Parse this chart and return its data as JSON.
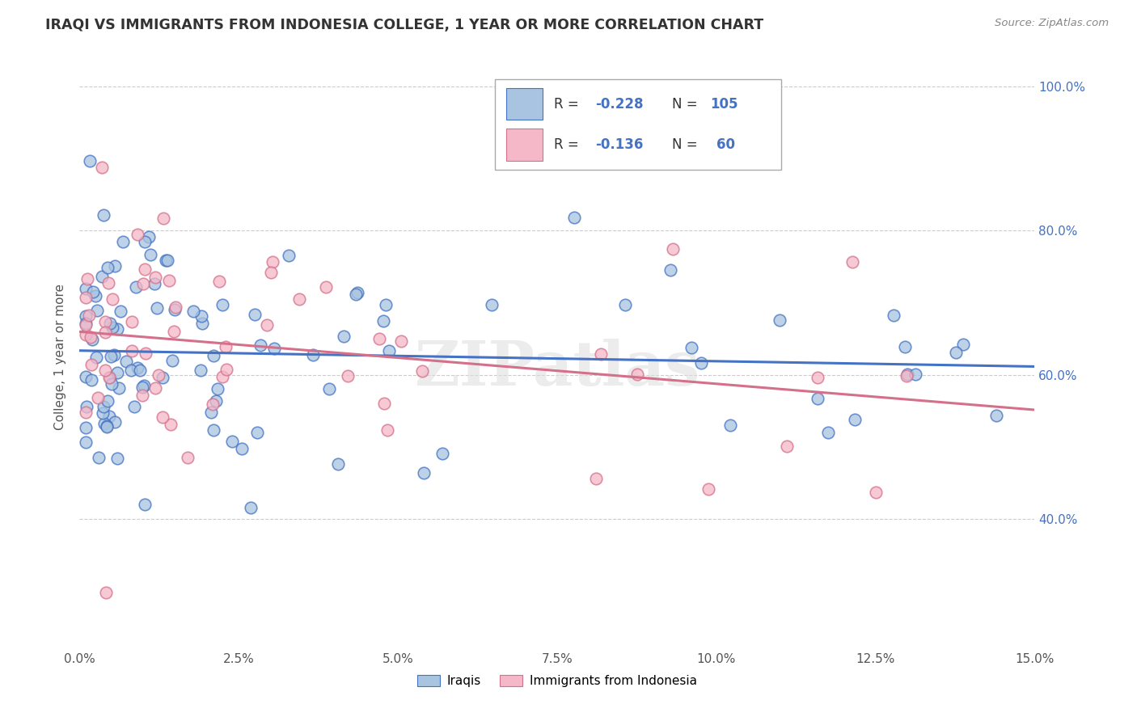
{
  "title": "IRAQI VS IMMIGRANTS FROM INDONESIA COLLEGE, 1 YEAR OR MORE CORRELATION CHART",
  "source": "Source: ZipAtlas.com",
  "ylabel": "College, 1 year or more",
  "xlim": [
    0.0,
    0.15
  ],
  "ylim": [
    0.22,
    1.03
  ],
  "xticks": [
    0.0,
    0.025,
    0.05,
    0.075,
    0.1,
    0.125,
    0.15
  ],
  "xticklabels": [
    "0.0%",
    "2.5%",
    "5.0%",
    "7.5%",
    "10.0%",
    "12.5%",
    "15.0%"
  ],
  "yticks_right": [
    0.4,
    0.6,
    0.8,
    1.0
  ],
  "yticklabels_right": [
    "40.0%",
    "60.0%",
    "80.0%",
    "100.0%"
  ],
  "blue_color": "#a8c4e0",
  "pink_color": "#f4b8c8",
  "blue_line_color": "#4472c4",
  "pink_line_color": "#d4708a",
  "watermark": "ZIPatlas",
  "legend_text_color": "#4472c4",
  "r_blue": -0.228,
  "n_blue": 105,
  "r_pink": -0.136,
  "n_pink": 60,
  "figsize": [
    14.06,
    8.92
  ],
  "dpi": 100
}
